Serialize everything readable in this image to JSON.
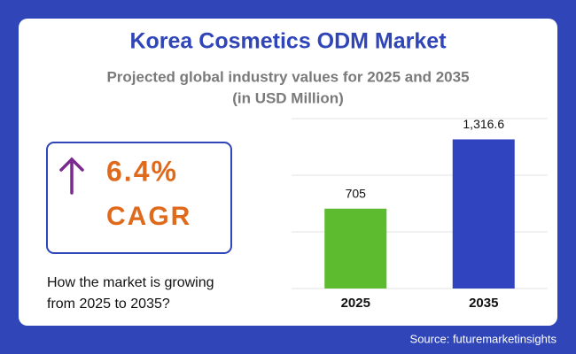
{
  "title": "Korea Cosmetics ODM Market",
  "subtitle": [
    "Projected global industry values for 2025 and 2035",
    "(in USD Million)"
  ],
  "cagr": {
    "value": "6.4%",
    "label": "CAGR"
  },
  "question": [
    "How the market is growing",
    "from 2025 to 2035?"
  ],
  "source": "Source: futuremarketinsights",
  "chart_data": {
    "type": "bar",
    "categories": [
      "2025",
      "2035"
    ],
    "series": [
      {
        "name": null,
        "colors": [
          "#5dbb2f",
          "#3044c0"
        ],
        "values": [
          705,
          1316.6
        ],
        "value_labels": [
          "705",
          "1,316.6"
        ]
      }
    ],
    "ylim": [
      0,
      1500
    ],
    "yticks": [
      0,
      500,
      1000,
      1500
    ],
    "grid": true,
    "show_tick_labels": false
  }
}
